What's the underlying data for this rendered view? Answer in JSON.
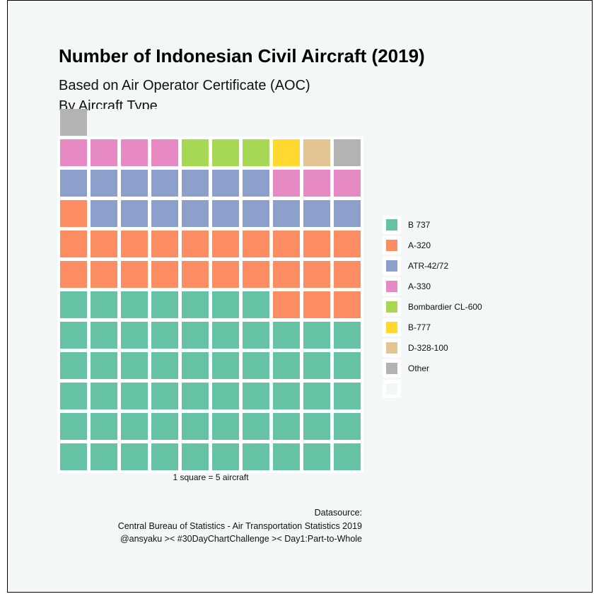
{
  "chart_data": {
    "type": "waffle",
    "title": "Number of Indonesian Civil Aircraft (2019)",
    "subtitle_lines": [
      "Based on Air Operator Certificate (AOC)",
      "By Aircraft Type"
    ],
    "xlabel": "1 square = 5 aircraft",
    "grid": {
      "columns": 10,
      "rows": 11
    },
    "series": [
      {
        "name": "B 737",
        "squares": 57,
        "color": "#66c2a5"
      },
      {
        "name": "A-320",
        "squares": 24,
        "color": "#fc8d62"
      },
      {
        "name": "ATR-42/72",
        "squares": 16,
        "color": "#8da0cb"
      },
      {
        "name": "A-330",
        "squares": 7,
        "color": "#e78ac3"
      },
      {
        "name": "Bombardier CL-600",
        "squares": 3,
        "color": "#a6d854"
      },
      {
        "name": "B-777",
        "squares": 1,
        "color": "#ffd92f"
      },
      {
        "name": "D-328-100",
        "squares": 1,
        "color": "#e5c494"
      },
      {
        "name": "Other",
        "squares": 2,
        "color": "#b3b3b3"
      },
      {
        "name": "",
        "squares": 3,
        "color": "#f4f7f7"
      }
    ],
    "legend_position": "right"
  },
  "caption": {
    "lines": [
      "Datasource:",
      "Central Bureau of Statistics - Air Transportation Statistics 2019",
      "@ansyaku >< #30DayChartChallenge >< Day1:Part-to-Whole"
    ]
  }
}
